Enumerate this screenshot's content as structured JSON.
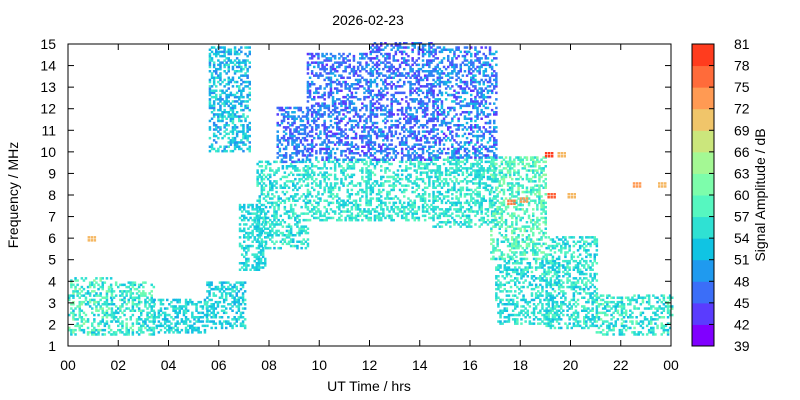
{
  "chart_data": {
    "type": "heatmap",
    "title": "2026-02-23",
    "xlabel": "UT Time / hrs",
    "ylabel": "Frequency / MHz",
    "colorbar_label": "Signal Amplitude / dB",
    "xlim": [
      0,
      24
    ],
    "ylim": [
      1,
      15
    ],
    "x_ticks": [
      "00",
      "02",
      "04",
      "06",
      "08",
      "10",
      "12",
      "14",
      "16",
      "18",
      "20",
      "22",
      "00"
    ],
    "y_ticks": [
      "1",
      "2",
      "3",
      "4",
      "5",
      "6",
      "7",
      "8",
      "9",
      "10",
      "11",
      "12",
      "13",
      "14",
      "15"
    ],
    "color_scale": {
      "min": 39,
      "max": 81,
      "ticks": [
        "39",
        "42",
        "45",
        "48",
        "51",
        "54",
        "57",
        "60",
        "63",
        "66",
        "69",
        "72",
        "75",
        "78",
        "81"
      ],
      "colors": [
        "#8000ff",
        "#5a3cfe",
        "#3b6ef8",
        "#1f9aef",
        "#10c4e3",
        "#2fe1d3",
        "#56f7c0",
        "#7dfdab",
        "#a4f894",
        "#cbe67c",
        "#f0c56a",
        "#ff9a53",
        "#ff6b3a",
        "#ff3c1e",
        "#ff0000"
      ]
    },
    "grid": false,
    "legend": "colorbar-right",
    "regions": [
      {
        "t": [
          0.0,
          1.7
        ],
        "f": [
          1.5,
          4.2
        ],
        "amp": [
          50,
          62
        ]
      },
      {
        "t": [
          1.7,
          3.4
        ],
        "f": [
          1.5,
          4.0
        ],
        "amp": [
          50,
          60
        ]
      },
      {
        "t": [
          3.4,
          5.5
        ],
        "f": [
          1.6,
          3.2
        ],
        "amp": [
          49,
          56
        ]
      },
      {
        "t": [
          5.5,
          7.0
        ],
        "f": [
          1.8,
          4.0
        ],
        "amp": [
          49,
          56
        ]
      },
      {
        "t": [
          6.8,
          7.8
        ],
        "f": [
          4.5,
          7.5
        ],
        "amp": [
          50,
          56
        ]
      },
      {
        "t": [
          7.5,
          9.5
        ],
        "f": [
          5.5,
          9.5
        ],
        "amp": [
          50,
          58
        ]
      },
      {
        "t": [
          8.3,
          9.5
        ],
        "f": [
          9.5,
          12.0
        ],
        "amp": [
          42,
          50
        ]
      },
      {
        "t": [
          9.5,
          12.0
        ],
        "f": [
          6.8,
          9.6
        ],
        "amp": [
          51,
          58
        ]
      },
      {
        "t": [
          9.5,
          12.0
        ],
        "f": [
          9.6,
          14.5
        ],
        "amp": [
          41,
          50
        ]
      },
      {
        "t": [
          12.0,
          14.5
        ],
        "f": [
          6.8,
          9.6
        ],
        "amp": [
          51,
          58
        ]
      },
      {
        "t": [
          12.0,
          14.5
        ],
        "f": [
          9.6,
          15.0
        ],
        "amp": [
          41,
          50
        ]
      },
      {
        "t": [
          14.5,
          17.0
        ],
        "f": [
          6.5,
          9.7
        ],
        "amp": [
          51,
          58
        ]
      },
      {
        "t": [
          14.5,
          17.0
        ],
        "f": [
          9.7,
          14.8
        ],
        "amp": [
          41,
          52
        ]
      },
      {
        "t": [
          16.8,
          19.0
        ],
        "f": [
          5.0,
          9.7
        ],
        "amp": [
          52,
          62
        ]
      },
      {
        "t": [
          17.0,
          19.5
        ],
        "f": [
          2.0,
          5.0
        ],
        "amp": [
          50,
          58
        ]
      },
      {
        "t": [
          19.0,
          21.0
        ],
        "f": [
          1.8,
          6.0
        ],
        "amp": [
          50,
          58
        ]
      },
      {
        "t": [
          21.0,
          24.0
        ],
        "f": [
          1.5,
          3.4
        ],
        "amp": [
          50,
          60
        ]
      },
      {
        "t": [
          5.6,
          7.2
        ],
        "f": [
          10.0,
          14.8
        ],
        "amp": [
          46,
          56
        ]
      }
    ],
    "hotspots": [
      {
        "t": 17.6,
        "f": 7.7,
        "amp": 74
      },
      {
        "t": 18.1,
        "f": 7.8,
        "amp": 72
      },
      {
        "t": 19.1,
        "f": 9.9,
        "amp": 78
      },
      {
        "t": 19.6,
        "f": 9.9,
        "amp": 70
      },
      {
        "t": 19.2,
        "f": 8.0,
        "amp": 76
      },
      {
        "t": 20.0,
        "f": 8.0,
        "amp": 70
      },
      {
        "t": 22.6,
        "f": 8.5,
        "amp": 72
      },
      {
        "t": 23.6,
        "f": 8.5,
        "amp": 70
      },
      {
        "t": 0.9,
        "f": 6.0,
        "amp": 70
      }
    ]
  }
}
